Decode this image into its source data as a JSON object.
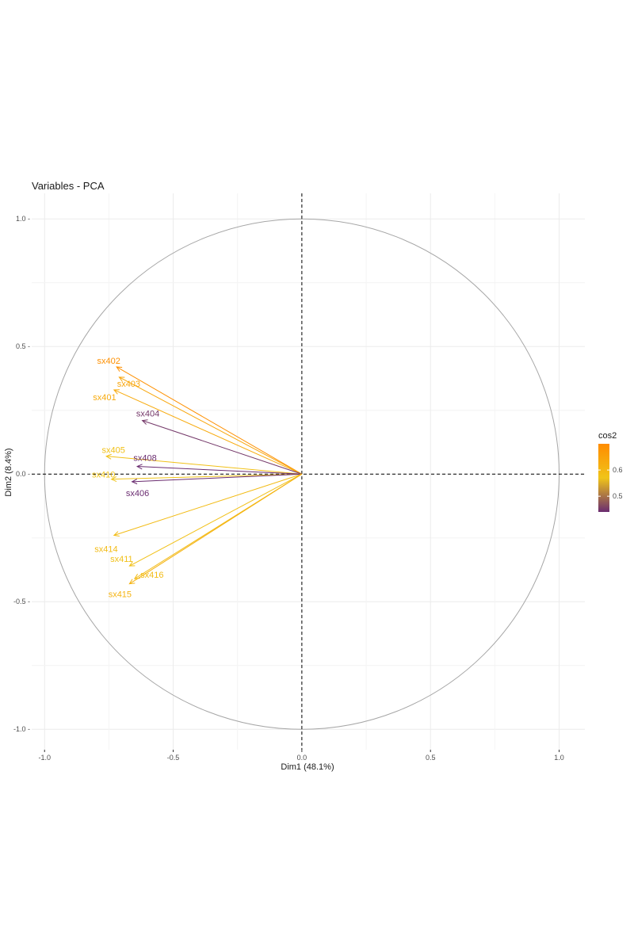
{
  "chart_data": {
    "type": "scatter",
    "subtype": "pca-variable-correlation-circle",
    "title": "Variables - PCA",
    "xlabel": "Dim1 (48.1%)",
    "ylabel": "Dim2 (8.4%)",
    "xlim": [
      -1.05,
      1.1
    ],
    "ylim": [
      -1.08,
      1.1
    ],
    "xticks": [
      -1.0,
      -0.5,
      0.0,
      0.5,
      1.0
    ],
    "xtick_labels": [
      "-1.0",
      "-0.5",
      "0.0",
      "0.5",
      "1.0"
    ],
    "yticks": [
      -1.0,
      -0.5,
      0.0,
      0.5,
      1.0
    ],
    "ytick_labels": [
      "-1.0 -",
      "-0.5 -",
      "0.0 -",
      "0.5 -",
      "1.0 -"
    ],
    "grid": true,
    "unit_circle": true,
    "reference_lines": "dashed at x=0 and y=0",
    "legend": {
      "title": "cos2",
      "placement": "right",
      "type": "colorbar",
      "range": [
        0.44,
        0.7
      ],
      "ticks": [
        0.5,
        0.6
      ],
      "tick_labels": [
        "0.5",
        "0.6"
      ],
      "colors": [
        "#6a2c70",
        "#f0c419",
        "#ff8c00"
      ]
    },
    "variables": [
      {
        "name": "sx402",
        "x": -0.72,
        "y": 0.42,
        "cos2": 0.69
      },
      {
        "name": "sx403",
        "x": -0.71,
        "y": 0.38,
        "cos2": 0.64
      },
      {
        "name": "sx401",
        "x": -0.73,
        "y": 0.33,
        "cos2": 0.63
      },
      {
        "name": "sx404",
        "x": -0.62,
        "y": 0.21,
        "cos2": 0.45
      },
      {
        "name": "sx405",
        "x": -0.76,
        "y": 0.07,
        "cos2": 0.58
      },
      {
        "name": "sx408",
        "x": -0.64,
        "y": 0.03,
        "cos2": 0.43
      },
      {
        "name": "sx410",
        "x": -0.74,
        "y": -0.02,
        "cos2": 0.57
      },
      {
        "name": "sx406",
        "x": -0.66,
        "y": -0.03,
        "cos2": 0.44
      },
      {
        "name": "sx414",
        "x": -0.73,
        "y": -0.24,
        "cos2": 0.59
      },
      {
        "name": "sx411",
        "x": -0.67,
        "y": -0.36,
        "cos2": 0.58
      },
      {
        "name": "sx416",
        "x": -0.65,
        "y": -0.41,
        "cos2": 0.59
      },
      {
        "name": "sx415",
        "x": -0.67,
        "y": -0.43,
        "cos2": 0.61
      }
    ]
  }
}
